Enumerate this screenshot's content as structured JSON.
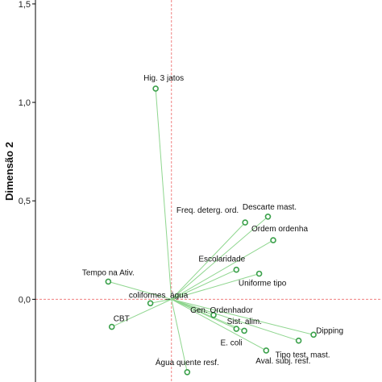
{
  "chart_data": {
    "type": "scatter",
    "ylabel": "Dimensão 2",
    "xlim": [
      -1.55,
      2.4
    ],
    "ylim": [
      -0.42,
      1.52
    ],
    "y_ticks": [
      {
        "value": 1.5,
        "label": "1,5"
      },
      {
        "value": 1.0,
        "label": "1,0"
      },
      {
        "value": 0.5,
        "label": "0,5"
      },
      {
        "value": 0.0,
        "label": "0,0"
      }
    ],
    "reference_lines": {
      "x": 0.0,
      "y": 0.0,
      "style": "dashed",
      "color": "#f08080"
    },
    "vectors_from_origin": true,
    "colors": {
      "point": "#3aa04a",
      "vector": "#8fd68f",
      "axis": "#000000"
    },
    "points": [
      {
        "name": "Hig. 3 jatos",
        "x": -0.18,
        "y": 1.07
      },
      {
        "name": "Descarte mast.",
        "x": 1.1,
        "y": 0.42
      },
      {
        "name": "Freq. deterg. ord.",
        "x": 0.84,
        "y": 0.39
      },
      {
        "name": "Ordem ordenha",
        "x": 1.16,
        "y": 0.3
      },
      {
        "name": "Escolaridade",
        "x": 0.74,
        "y": 0.15
      },
      {
        "name": "Uniforme tipo",
        "x": 1.0,
        "y": 0.13
      },
      {
        "name": "Tempo na Ativ.",
        "x": -0.72,
        "y": 0.09
      },
      {
        "name": "coliformes_água",
        "x": -0.24,
        "y": -0.02
      },
      {
        "name": "CBT",
        "x": -0.68,
        "y": -0.14
      },
      {
        "name": "Gen. Ordenhador",
        "x": 0.48,
        "y": -0.08
      },
      {
        "name": "Sist. alim.",
        "x": 0.74,
        "y": -0.15
      },
      {
        "name": "E. coli",
        "x": 0.83,
        "y": -0.16
      },
      {
        "name": "Dipping",
        "x": 1.62,
        "y": -0.18
      },
      {
        "name": "Tipo test. mast.",
        "x": 1.45,
        "y": -0.21
      },
      {
        "name": "Aval. subj. resf.",
        "x": 1.08,
        "y": -0.26
      },
      {
        "name": "Água quente resf.",
        "x": 0.18,
        "y": -0.37
      }
    ]
  }
}
